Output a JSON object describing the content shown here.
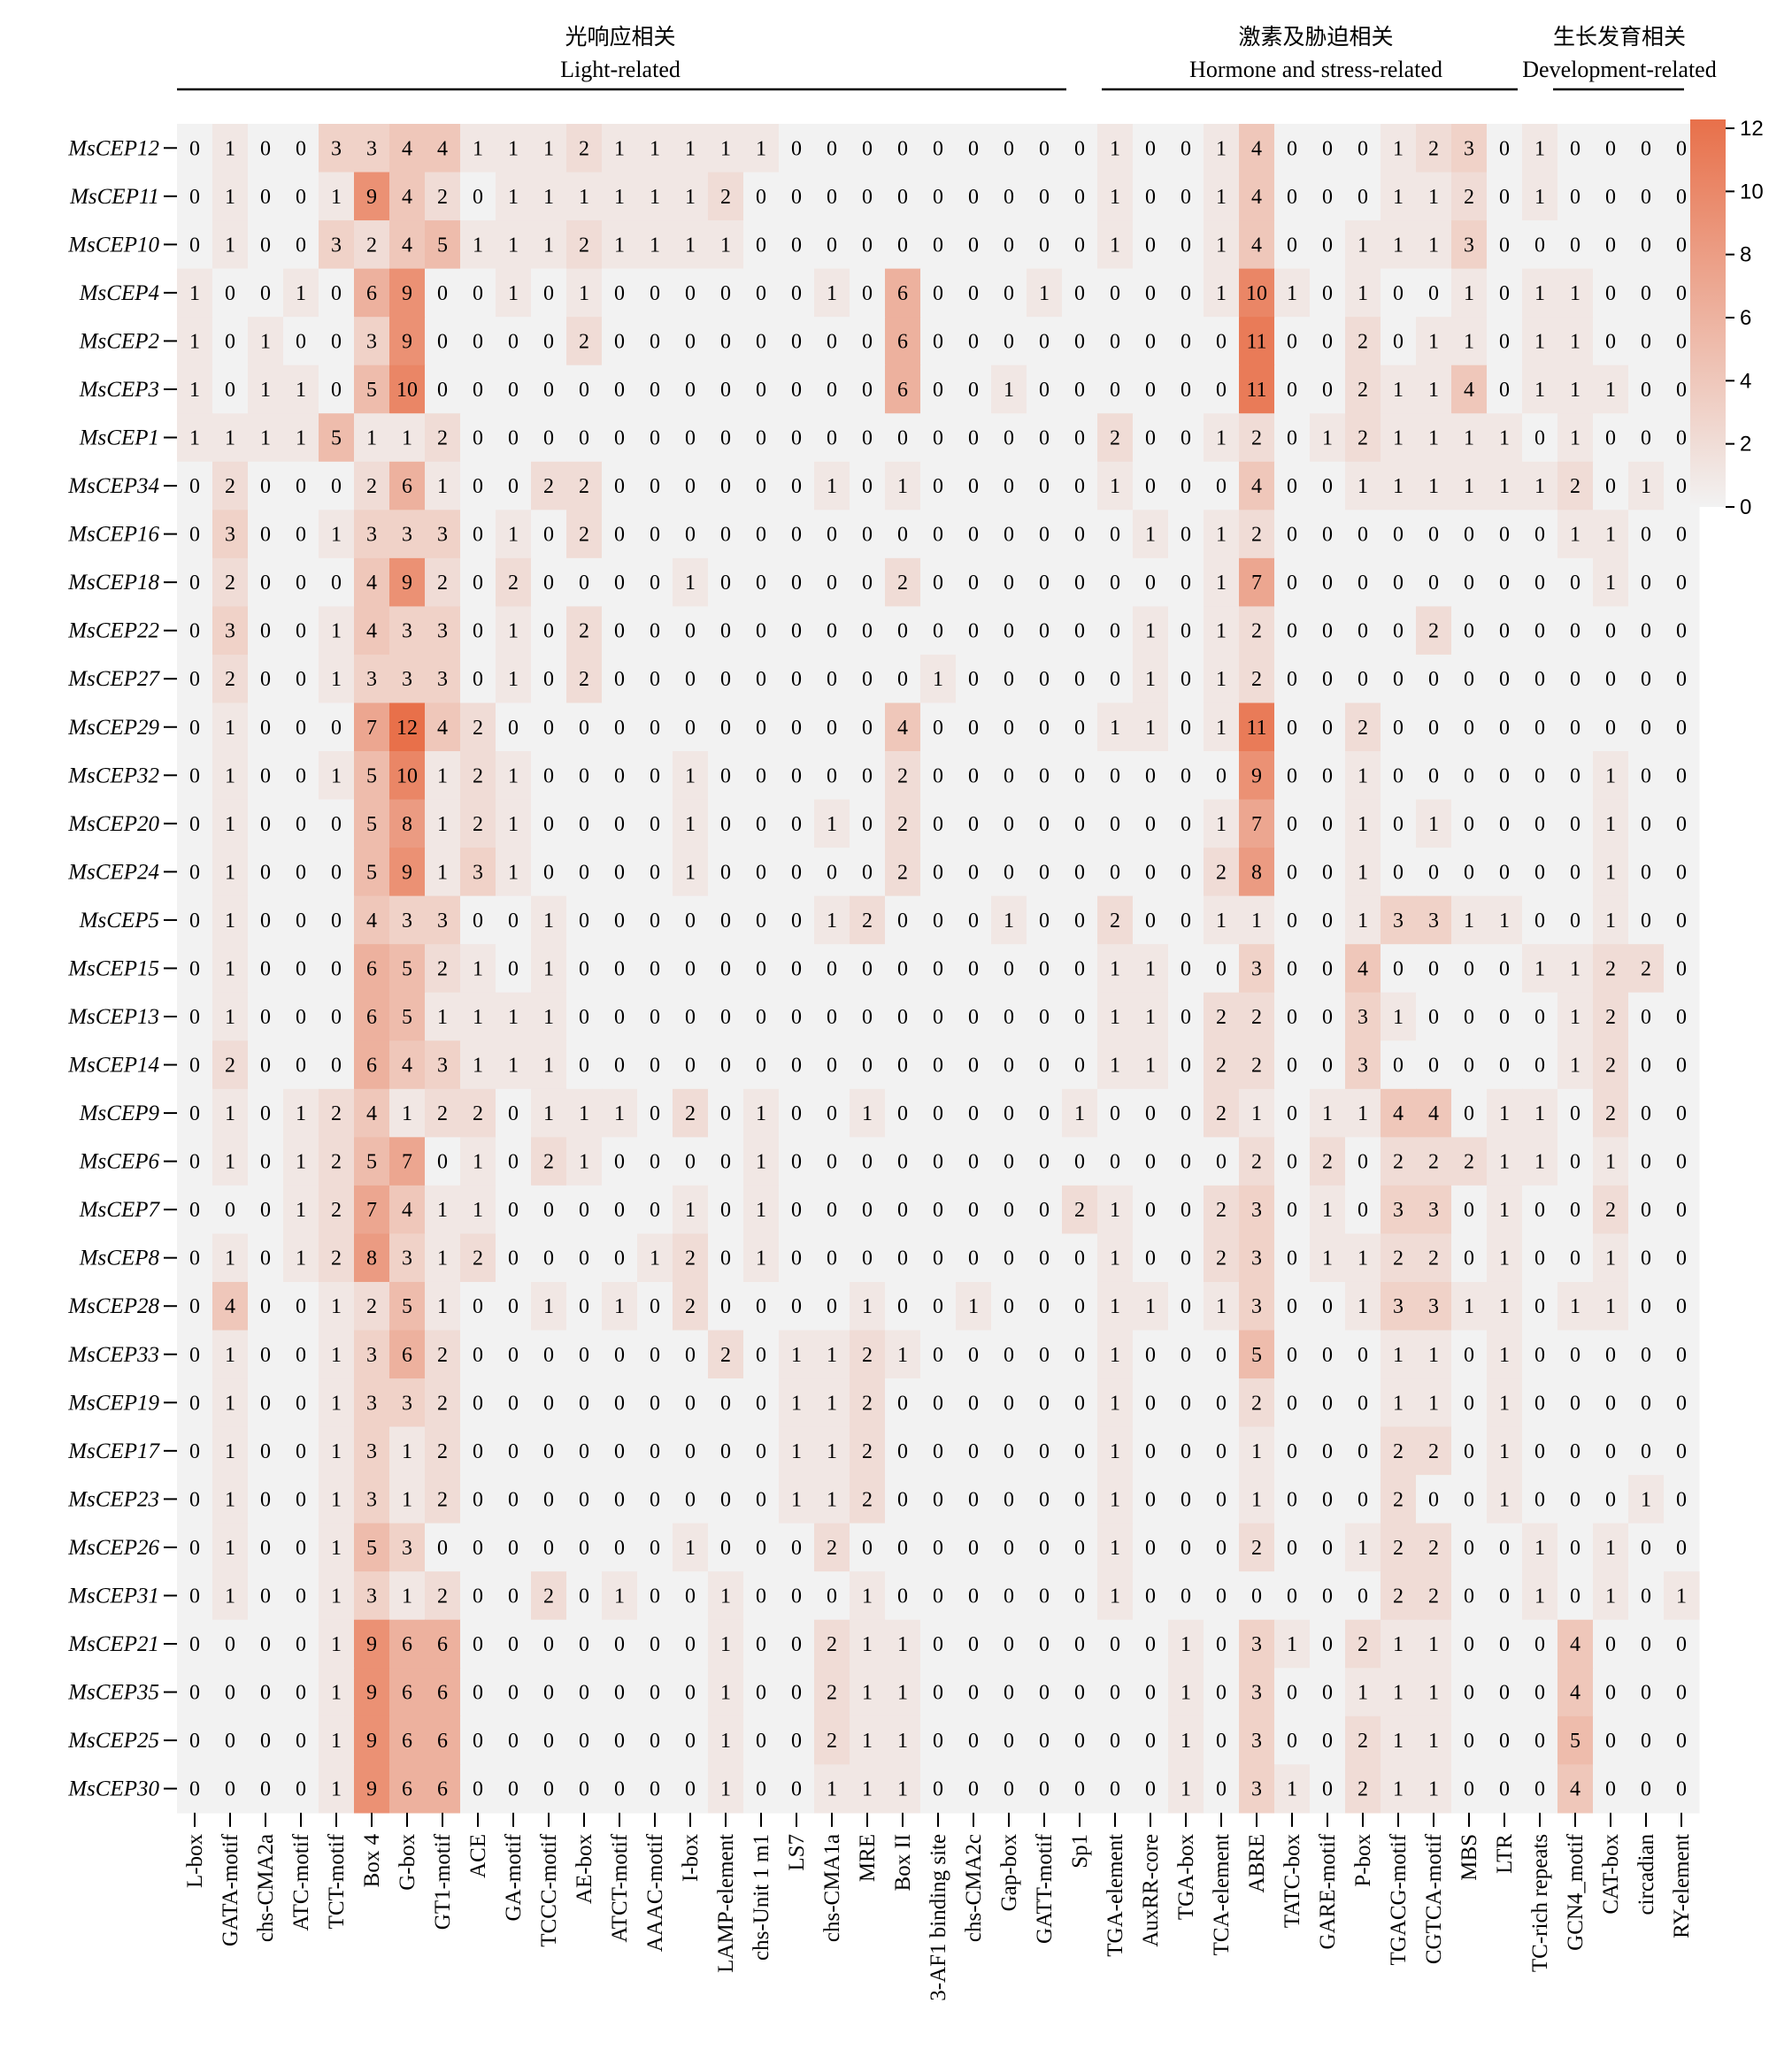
{
  "chart_data": {
    "type": "heatmap",
    "rows": [
      "MsCEP12",
      "MsCEP11",
      "MsCEP10",
      "MsCEP4",
      "MsCEP2",
      "MsCEP3",
      "MsCEP1",
      "MsCEP34",
      "MsCEP16",
      "MsCEP18",
      "MsCEP22",
      "MsCEP27",
      "MsCEP29",
      "MsCEP32",
      "MsCEP20",
      "MsCEP24",
      "MsCEP5",
      "MsCEP15",
      "MsCEP13",
      "MsCEP14",
      "MsCEP9",
      "MsCEP6",
      "MsCEP7",
      "MsCEP8",
      "MsCEP28",
      "MsCEP33",
      "MsCEP19",
      "MsCEP17",
      "MsCEP23",
      "MsCEP26",
      "MsCEP31",
      "MsCEP21",
      "MsCEP35",
      "MsCEP25",
      "MsCEP30"
    ],
    "columns": [
      "L-box",
      "GATA-motif",
      "chs-CMA2a",
      "ATC-motif",
      "TCT-motif",
      "Box 4",
      "G-box",
      "GT1-motif",
      "ACE",
      "GA-motif",
      "TCCC-motif",
      "AE-box",
      "ATCT-motif",
      "AAAC-motif",
      "I-box",
      "LAMP-element",
      "chs-Unit 1 m1",
      "LS7",
      "chs-CMA1a",
      "MRE",
      "Box II",
      "3-AF1 binding site",
      "chs-CMA2c",
      "Gap-box",
      "GATT-motif",
      "Sp1",
      "TGA-element",
      "AuxRR-core",
      "TGA-box",
      "TCA-element",
      "ABRE",
      "TATC-box",
      "GARE-motif",
      "P-box",
      "TGACG-motif",
      "CGTCA-motif",
      "MBS",
      "LTR",
      "TC-rich repeats",
      "GCN4_motif",
      "CAT-box",
      "circadian",
      "RY-element"
    ],
    "values": [
      [
        0,
        1,
        0,
        0,
        3,
        3,
        4,
        4,
        1,
        1,
        1,
        2,
        1,
        1,
        1,
        1,
        1,
        0,
        0,
        0,
        0,
        0,
        0,
        0,
        0,
        0,
        1,
        0,
        0,
        1,
        4,
        0,
        0,
        0,
        1,
        2,
        3,
        0,
        1,
        0,
        0,
        0,
        0
      ],
      [
        0,
        1,
        0,
        0,
        1,
        9,
        4,
        2,
        0,
        1,
        1,
        1,
        1,
        1,
        1,
        2,
        0,
        0,
        0,
        0,
        0,
        0,
        0,
        0,
        0,
        0,
        1,
        0,
        0,
        1,
        4,
        0,
        0,
        0,
        1,
        1,
        2,
        0,
        1,
        0,
        0,
        0,
        0
      ],
      [
        0,
        1,
        0,
        0,
        3,
        2,
        4,
        5,
        1,
        1,
        1,
        2,
        1,
        1,
        1,
        1,
        0,
        0,
        0,
        0,
        0,
        0,
        0,
        0,
        0,
        0,
        1,
        0,
        0,
        1,
        4,
        0,
        0,
        1,
        1,
        1,
        3,
        0,
        0,
        0,
        0,
        0,
        0
      ],
      [
        1,
        0,
        0,
        1,
        0,
        6,
        9,
        0,
        0,
        1,
        0,
        1,
        0,
        0,
        0,
        0,
        0,
        0,
        1,
        0,
        6,
        0,
        0,
        0,
        1,
        0,
        0,
        0,
        0,
        1,
        10,
        1,
        0,
        1,
        0,
        0,
        1,
        0,
        1,
        1,
        0,
        0,
        0
      ],
      [
        1,
        0,
        1,
        0,
        0,
        3,
        9,
        0,
        0,
        0,
        0,
        2,
        0,
        0,
        0,
        0,
        0,
        0,
        0,
        0,
        6,
        0,
        0,
        0,
        0,
        0,
        0,
        0,
        0,
        0,
        11,
        0,
        0,
        2,
        0,
        1,
        1,
        0,
        1,
        1,
        0,
        0,
        0
      ],
      [
        1,
        0,
        1,
        1,
        0,
        5,
        10,
        0,
        0,
        0,
        0,
        0,
        0,
        0,
        0,
        0,
        0,
        0,
        0,
        0,
        6,
        0,
        0,
        1,
        0,
        0,
        0,
        0,
        0,
        0,
        11,
        0,
        0,
        2,
        1,
        1,
        4,
        0,
        1,
        1,
        1,
        0,
        0
      ],
      [
        1,
        1,
        1,
        1,
        5,
        1,
        1,
        2,
        0,
        0,
        0,
        0,
        0,
        0,
        0,
        0,
        0,
        0,
        0,
        0,
        0,
        0,
        0,
        0,
        0,
        0,
        2,
        0,
        0,
        1,
        2,
        0,
        1,
        2,
        1,
        1,
        1,
        1,
        0,
        1,
        0,
        0,
        0
      ],
      [
        0,
        2,
        0,
        0,
        0,
        2,
        6,
        1,
        0,
        0,
        2,
        2,
        0,
        0,
        0,
        0,
        0,
        0,
        1,
        0,
        1,
        0,
        0,
        0,
        0,
        0,
        1,
        0,
        0,
        0,
        4,
        0,
        0,
        1,
        1,
        1,
        1,
        1,
        1,
        2,
        0,
        1,
        0
      ],
      [
        0,
        3,
        0,
        0,
        1,
        3,
        3,
        3,
        0,
        1,
        0,
        2,
        0,
        0,
        0,
        0,
        0,
        0,
        0,
        0,
        0,
        0,
        0,
        0,
        0,
        0,
        0,
        1,
        0,
        1,
        2,
        0,
        0,
        0,
        0,
        0,
        0,
        0,
        0,
        1,
        1,
        0,
        0
      ],
      [
        0,
        2,
        0,
        0,
        0,
        4,
        9,
        2,
        0,
        2,
        0,
        0,
        0,
        0,
        1,
        0,
        0,
        0,
        0,
        0,
        2,
        0,
        0,
        0,
        0,
        0,
        0,
        0,
        0,
        1,
        7,
        0,
        0,
        0,
        0,
        0,
        0,
        0,
        0,
        0,
        1,
        0,
        0
      ],
      [
        0,
        3,
        0,
        0,
        1,
        4,
        3,
        3,
        0,
        1,
        0,
        2,
        0,
        0,
        0,
        0,
        0,
        0,
        0,
        0,
        0,
        0,
        0,
        0,
        0,
        0,
        0,
        1,
        0,
        1,
        2,
        0,
        0,
        0,
        0,
        2,
        0,
        0,
        0,
        0,
        0,
        0,
        0
      ],
      [
        0,
        2,
        0,
        0,
        1,
        3,
        3,
        3,
        0,
        1,
        0,
        2,
        0,
        0,
        0,
        0,
        0,
        0,
        0,
        0,
        0,
        1,
        0,
        0,
        0,
        0,
        0,
        1,
        0,
        1,
        2,
        0,
        0,
        0,
        0,
        0,
        0,
        0,
        0,
        0,
        0,
        0,
        0
      ],
      [
        0,
        1,
        0,
        0,
        0,
        7,
        12,
        4,
        2,
        0,
        0,
        0,
        0,
        0,
        0,
        0,
        0,
        0,
        0,
        0,
        4,
        0,
        0,
        0,
        0,
        0,
        1,
        1,
        0,
        1,
        11,
        0,
        0,
        2,
        0,
        0,
        0,
        0,
        0,
        0,
        0,
        0,
        0
      ],
      [
        0,
        1,
        0,
        0,
        1,
        5,
        10,
        1,
        2,
        1,
        0,
        0,
        0,
        0,
        1,
        0,
        0,
        0,
        0,
        0,
        2,
        0,
        0,
        0,
        0,
        0,
        0,
        0,
        0,
        0,
        9,
        0,
        0,
        1,
        0,
        0,
        0,
        0,
        0,
        0,
        1,
        0,
        0
      ],
      [
        0,
        1,
        0,
        0,
        0,
        5,
        8,
        1,
        2,
        1,
        0,
        0,
        0,
        0,
        1,
        0,
        0,
        0,
        1,
        0,
        2,
        0,
        0,
        0,
        0,
        0,
        0,
        0,
        0,
        1,
        7,
        0,
        0,
        1,
        0,
        1,
        0,
        0,
        0,
        0,
        1,
        0,
        0
      ],
      [
        0,
        1,
        0,
        0,
        0,
        5,
        9,
        1,
        3,
        1,
        0,
        0,
        0,
        0,
        1,
        0,
        0,
        0,
        0,
        0,
        2,
        0,
        0,
        0,
        0,
        0,
        0,
        0,
        0,
        2,
        8,
        0,
        0,
        1,
        0,
        0,
        0,
        0,
        0,
        0,
        1,
        0,
        0
      ],
      [
        0,
        1,
        0,
        0,
        0,
        4,
        3,
        3,
        0,
        0,
        1,
        0,
        0,
        0,
        0,
        0,
        0,
        0,
        1,
        2,
        0,
        0,
        0,
        1,
        0,
        0,
        2,
        0,
        0,
        1,
        1,
        0,
        0,
        1,
        3,
        3,
        1,
        1,
        0,
        0,
        1,
        0,
        0
      ],
      [
        0,
        1,
        0,
        0,
        0,
        6,
        5,
        2,
        1,
        0,
        1,
        0,
        0,
        0,
        0,
        0,
        0,
        0,
        0,
        0,
        0,
        0,
        0,
        0,
        0,
        0,
        1,
        1,
        0,
        0,
        3,
        0,
        0,
        4,
        0,
        0,
        0,
        0,
        1,
        1,
        2,
        2,
        0
      ],
      [
        0,
        1,
        0,
        0,
        0,
        6,
        5,
        1,
        1,
        1,
        1,
        0,
        0,
        0,
        0,
        0,
        0,
        0,
        0,
        0,
        0,
        0,
        0,
        0,
        0,
        0,
        1,
        1,
        0,
        2,
        2,
        0,
        0,
        3,
        1,
        0,
        0,
        0,
        0,
        1,
        2,
        0,
        0
      ],
      [
        0,
        2,
        0,
        0,
        0,
        6,
        4,
        3,
        1,
        1,
        1,
        0,
        0,
        0,
        0,
        0,
        0,
        0,
        0,
        0,
        0,
        0,
        0,
        0,
        0,
        0,
        1,
        1,
        0,
        2,
        2,
        0,
        0,
        3,
        0,
        0,
        0,
        0,
        0,
        1,
        2,
        0,
        0
      ],
      [
        0,
        1,
        0,
        1,
        2,
        4,
        1,
        2,
        2,
        0,
        1,
        1,
        1,
        0,
        2,
        0,
        1,
        0,
        0,
        1,
        0,
        0,
        0,
        0,
        0,
        1,
        0,
        0,
        0,
        2,
        1,
        0,
        1,
        1,
        4,
        4,
        0,
        1,
        1,
        0,
        2,
        0,
        0
      ],
      [
        0,
        1,
        0,
        1,
        2,
        5,
        7,
        0,
        1,
        0,
        2,
        1,
        0,
        0,
        0,
        0,
        1,
        0,
        0,
        0,
        0,
        0,
        0,
        0,
        0,
        0,
        0,
        0,
        0,
        0,
        2,
        0,
        2,
        0,
        2,
        2,
        2,
        1,
        1,
        0,
        1,
        0,
        0
      ],
      [
        0,
        0,
        0,
        1,
        2,
        7,
        4,
        1,
        1,
        0,
        0,
        0,
        0,
        0,
        1,
        0,
        1,
        0,
        0,
        0,
        0,
        0,
        0,
        0,
        0,
        2,
        1,
        0,
        0,
        2,
        3,
        0,
        1,
        0,
        3,
        3,
        0,
        1,
        0,
        0,
        2,
        0,
        0
      ],
      [
        0,
        1,
        0,
        1,
        2,
        8,
        3,
        1,
        2,
        0,
        0,
        0,
        0,
        1,
        2,
        0,
        1,
        0,
        0,
        0,
        0,
        0,
        0,
        0,
        0,
        0,
        1,
        0,
        0,
        2,
        3,
        0,
        1,
        1,
        2,
        2,
        0,
        1,
        0,
        0,
        1,
        0,
        0
      ],
      [
        0,
        4,
        0,
        0,
        1,
        2,
        5,
        1,
        0,
        0,
        1,
        0,
        1,
        0,
        2,
        0,
        0,
        0,
        0,
        1,
        0,
        0,
        1,
        0,
        0,
        0,
        1,
        1,
        0,
        1,
        3,
        0,
        0,
        1,
        3,
        3,
        1,
        1,
        0,
        1,
        1,
        0,
        0
      ],
      [
        0,
        1,
        0,
        0,
        1,
        3,
        6,
        2,
        0,
        0,
        0,
        0,
        0,
        0,
        0,
        2,
        0,
        1,
        1,
        2,
        1,
        0,
        0,
        0,
        0,
        0,
        1,
        0,
        0,
        0,
        5,
        0,
        0,
        0,
        1,
        1,
        0,
        1,
        0,
        0,
        0,
        0,
        0
      ],
      [
        0,
        1,
        0,
        0,
        1,
        3,
        3,
        2,
        0,
        0,
        0,
        0,
        0,
        0,
        0,
        0,
        0,
        1,
        1,
        2,
        0,
        0,
        0,
        0,
        0,
        0,
        1,
        0,
        0,
        0,
        2,
        0,
        0,
        0,
        1,
        1,
        0,
        1,
        0,
        0,
        0,
        0,
        0
      ],
      [
        0,
        1,
        0,
        0,
        1,
        3,
        1,
        2,
        0,
        0,
        0,
        0,
        0,
        0,
        0,
        0,
        0,
        1,
        1,
        2,
        0,
        0,
        0,
        0,
        0,
        0,
        1,
        0,
        0,
        0,
        1,
        0,
        0,
        0,
        2,
        2,
        0,
        1,
        0,
        0,
        0,
        0,
        0
      ],
      [
        0,
        1,
        0,
        0,
        1,
        3,
        1,
        2,
        0,
        0,
        0,
        0,
        0,
        0,
        0,
        0,
        0,
        1,
        1,
        2,
        0,
        0,
        0,
        0,
        0,
        0,
        1,
        0,
        0,
        0,
        1,
        0,
        0,
        0,
        2,
        0,
        0,
        1,
        0,
        0,
        0,
        1,
        0
      ],
      [
        0,
        1,
        0,
        0,
        1,
        5,
        3,
        0,
        0,
        0,
        0,
        0,
        0,
        0,
        1,
        0,
        0,
        0,
        2,
        0,
        0,
        0,
        0,
        0,
        0,
        0,
        1,
        0,
        0,
        0,
        2,
        0,
        0,
        1,
        2,
        2,
        0,
        0,
        1,
        0,
        1,
        0,
        0
      ],
      [
        0,
        1,
        0,
        0,
        1,
        3,
        1,
        2,
        0,
        0,
        2,
        0,
        1,
        0,
        0,
        1,
        0,
        0,
        0,
        1,
        0,
        0,
        0,
        0,
        0,
        0,
        1,
        0,
        0,
        0,
        0,
        0,
        0,
        0,
        2,
        2,
        0,
        0,
        1,
        0,
        1,
        0,
        1
      ],
      [
        0,
        0,
        0,
        0,
        1,
        9,
        6,
        6,
        0,
        0,
        0,
        0,
        0,
        0,
        0,
        1,
        0,
        0,
        2,
        1,
        1,
        0,
        0,
        0,
        0,
        0,
        0,
        0,
        1,
        0,
        3,
        1,
        0,
        2,
        1,
        1,
        0,
        0,
        0,
        4,
        0,
        0,
        0
      ],
      [
        0,
        0,
        0,
        0,
        1,
        9,
        6,
        6,
        0,
        0,
        0,
        0,
        0,
        0,
        0,
        1,
        0,
        0,
        2,
        1,
        1,
        0,
        0,
        0,
        0,
        0,
        0,
        0,
        1,
        0,
        3,
        0,
        0,
        1,
        1,
        1,
        0,
        0,
        0,
        4,
        0,
        0,
        0
      ],
      [
        0,
        0,
        0,
        0,
        1,
        9,
        6,
        6,
        0,
        0,
        0,
        0,
        0,
        0,
        0,
        1,
        0,
        0,
        2,
        1,
        1,
        0,
        0,
        0,
        0,
        0,
        0,
        0,
        1,
        0,
        3,
        0,
        0,
        2,
        1,
        1,
        0,
        0,
        0,
        5,
        0,
        0,
        0
      ],
      [
        0,
        0,
        0,
        0,
        1,
        9,
        6,
        6,
        0,
        0,
        0,
        0,
        0,
        0,
        0,
        1,
        0,
        0,
        1,
        1,
        1,
        0,
        0,
        0,
        0,
        0,
        0,
        0,
        1,
        0,
        3,
        1,
        0,
        2,
        1,
        1,
        0,
        0,
        0,
        4,
        0,
        0,
        0
      ]
    ],
    "groups": [
      {
        "label_cn": "光响应相关",
        "label_en": "Light-related"
      },
      {
        "label_cn": "激素及胁迫相关",
        "label_en": "Hormone and stress-related"
      },
      {
        "label_cn": "生长发育相关",
        "label_en": "Development-related"
      }
    ],
    "colorbar": {
      "min": 0,
      "max": 12,
      "ticks": [
        "0",
        "2",
        "4",
        "6",
        "8",
        "10",
        "12"
      ],
      "color_low": "#f2f2f2",
      "color_high": "#e8704a"
    }
  }
}
